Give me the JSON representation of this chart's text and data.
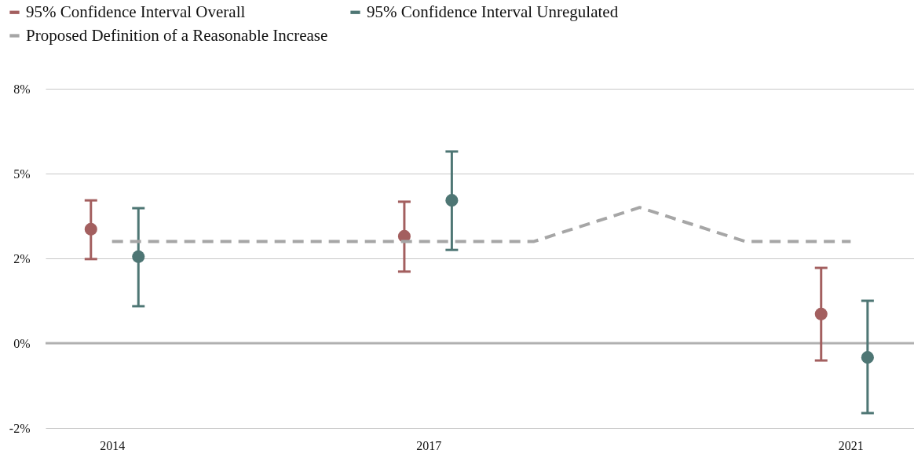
{
  "chart_data": {
    "type": "scatter",
    "marker": "circle",
    "legend": "top",
    "grid": "y",
    "xlim": [
      2013.37,
      2021.6
    ],
    "xticks": [
      2014,
      2017,
      2021
    ],
    "ylim": [
      -2.5,
      7.5
    ],
    "yticks": [
      {
        "value": -2.5,
        "label": "-2%"
      },
      {
        "value": 0,
        "label": "0%"
      },
      {
        "value": 2.5,
        "label": "2%"
      },
      {
        "value": 5,
        "label": "5%"
      },
      {
        "value": 7.5,
        "label": "8%"
      }
    ],
    "ref_lines": [
      {
        "axis": "y",
        "value": 0,
        "color": "#b0b0b0"
      }
    ],
    "series": [
      {
        "name": "95% Confidence Interval Overall",
        "color": "#a35f5f",
        "x": [
          2013.8,
          2016.77,
          2020.72
        ],
        "values": [
          3.36,
          3.15,
          0.86
        ],
        "errors": [
          [
            2.48,
            4.21
          ],
          [
            2.11,
            4.17
          ],
          [
            -0.51,
            2.22
          ]
        ]
      },
      {
        "name": "95% Confidence Interval Unregulated",
        "color": "#4e7674",
        "x": [
          2014.25,
          2017.22,
          2021.16
        ],
        "values": [
          2.55,
          4.21,
          -0.42
        ],
        "errors": [
          [
            1.09,
            3.98
          ],
          [
            2.75,
            5.65
          ],
          [
            -2.06,
            1.25
          ]
        ]
      },
      {
        "name": "Proposed Definition of a Reasonable Increase",
        "type": "line",
        "line_style": "dashed",
        "marker": "none",
        "color": "#a6a6a6",
        "x": [
          2014,
          2015,
          2016,
          2017,
          2018,
          2019,
          2020,
          2021
        ],
        "values": [
          3,
          3,
          3,
          3,
          3,
          4,
          3,
          3
        ]
      }
    ]
  }
}
